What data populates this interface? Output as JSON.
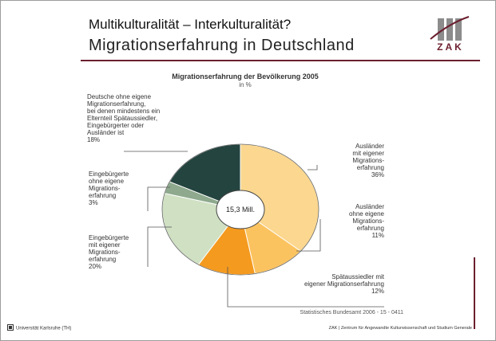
{
  "header": {
    "title_line1": "Multikulturalität – Interkulturalität?",
    "title_line2": "Migrationserfahrung in Deutschland",
    "logo_text": "ZAK"
  },
  "chart_data": {
    "type": "pie",
    "title": "Migrationserfahrung der Bevölkerung 2005",
    "unit": "in %",
    "center_label": "15,3 Mill.",
    "slices": [
      {
        "label_lines": [
          "Ausländer",
          "mit eigener",
          "Migrations-",
          "erfahrung",
          "36%"
        ],
        "value": 36,
        "color": "#fbd78f"
      },
      {
        "label_lines": [
          "Ausländer",
          "ohne eigene",
          "Migrations-",
          "erfahrung",
          "11%"
        ],
        "value": 11,
        "color": "#fbc35f"
      },
      {
        "label_lines": [
          "Spätaussiedler mit",
          "eigener Migrationserfahrung",
          "12%"
        ],
        "value": 12,
        "color": "#f49a1f"
      },
      {
        "label_lines": [
          "Eingebürgerte",
          "mit eigener",
          "Migrations-",
          "erfahrung",
          "20%"
        ],
        "value": 20,
        "color": "#cfe0c3"
      },
      {
        "label_lines": [
          "Eingebürgerte",
          "ohne eigene",
          "Migrations-",
          "erfahrung",
          "3%"
        ],
        "value": 3,
        "color": "#8ea98d"
      },
      {
        "label_lines": [
          "Deutsche ohne eigene",
          "Migrationserfahrung,",
          "bei denen mindestens ein",
          "Elternteil Spätaussiedler,",
          "Eingebürgerter oder",
          "Ausländer ist",
          "18%"
        ],
        "value": 18,
        "color": "#24443f"
      }
    ],
    "source": "Statistisches Bundesamt 2006 - 15 - 0411"
  },
  "footer": {
    "left": "Universität Karlsruhe (TH)",
    "right": "ZAK | Zentrum für Angewandte Kulturwissenschaft und Studium Generale"
  },
  "colors": {
    "accent": "#6b1f2e",
    "logo_grey": "#8c8c8c"
  }
}
